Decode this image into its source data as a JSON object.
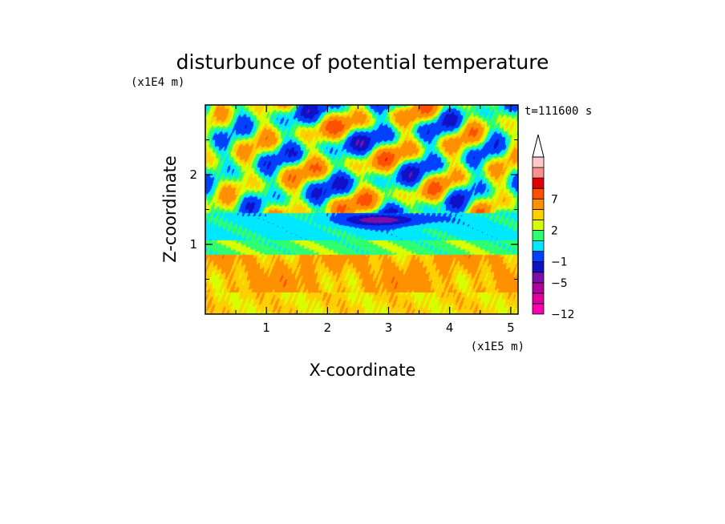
{
  "chart_data": {
    "type": "heatmap",
    "title": "disturbunce of potential temperature",
    "xlabel": "X-coordinate",
    "ylabel": "Z-coordinate",
    "x_unit": "(x1E5 m)",
    "y_unit": "(x1E4 m)",
    "time_label": "t=111600 s",
    "xlim": [
      0,
      5.12
    ],
    "ylim": [
      0,
      3.0
    ],
    "x_ticks": [
      1,
      2,
      3,
      4,
      5
    ],
    "x_tick_labels": [
      "1",
      "2",
      "3",
      "4",
      "5"
    ],
    "y_ticks": [
      1,
      2
    ],
    "y_tick_labels": [
      "1",
      "2"
    ],
    "colorbar": {
      "levels": [
        -12,
        -9,
        -7,
        -5,
        -3,
        -1,
        0,
        1,
        2,
        3,
        5,
        7,
        9,
        12
      ],
      "colors": [
        "#ff00b0",
        "#e000a0",
        "#b000a0",
        "#7a10a8",
        "#1010c8",
        "#0040ff",
        "#00e8ff",
        "#30ff70",
        "#d8ff00",
        "#ffd000",
        "#ff9000",
        "#ff5000",
        "#e00000",
        "#ff9090",
        "#ffc8c8"
      ],
      "tick_values": [
        -12,
        -5,
        -1,
        2,
        7
      ],
      "tick_labels": [
        "−12",
        "−5",
        "−1",
        "2",
        "7"
      ],
      "extend": "max"
    },
    "grid": false
  }
}
